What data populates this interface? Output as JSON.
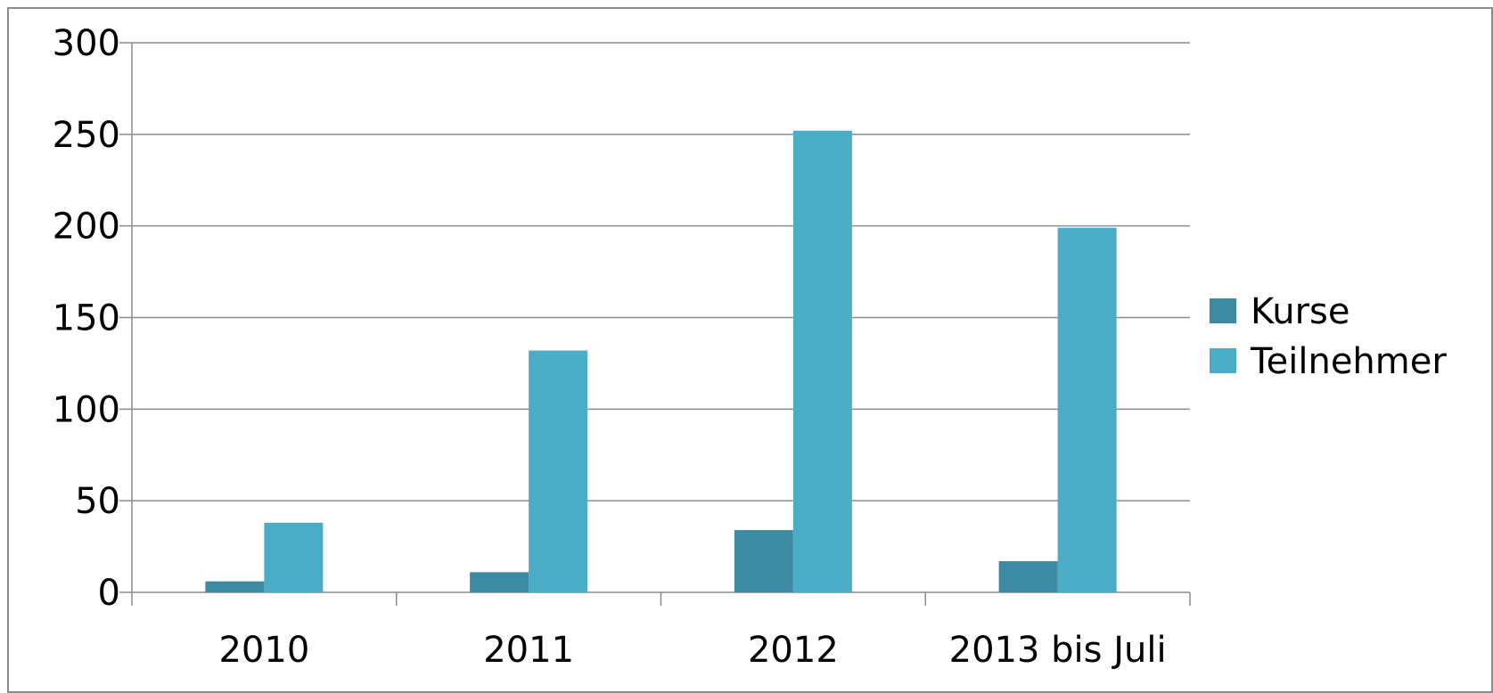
{
  "chart_data": {
    "type": "bar",
    "categories": [
      "2010",
      "2011",
      "2012",
      "2013 bis Juli"
    ],
    "series": [
      {
        "name": "Kurse",
        "values": [
          6,
          11,
          34,
          17
        ],
        "color": "#3d8aa3"
      },
      {
        "name": "Teilnehmer",
        "values": [
          38,
          132,
          252,
          199
        ],
        "color": "#4bacc6"
      }
    ],
    "yticks": [
      "0",
      "50",
      "100",
      "150",
      "200",
      "250",
      "300"
    ],
    "ylim": [
      0,
      300
    ],
    "grid": true,
    "legend_position": "right",
    "title": "",
    "xlabel": "",
    "ylabel": ""
  }
}
